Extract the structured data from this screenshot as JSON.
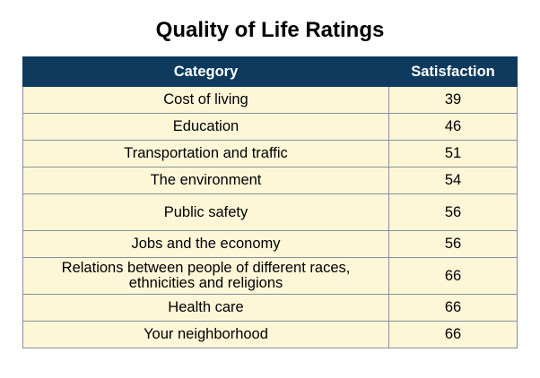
{
  "chart_data": {
    "type": "table",
    "title": "Quality of Life Ratings",
    "columns": [
      "Category",
      "Satisfaction"
    ],
    "rows": [
      {
        "category": "Cost of living",
        "value": "39"
      },
      {
        "category": "Education",
        "value": "46"
      },
      {
        "category": "Transportation and traffic",
        "value": "51"
      },
      {
        "category": "The environment",
        "value": "54"
      },
      {
        "category": "Public safety",
        "value": "56"
      },
      {
        "category": "Jobs and the economy",
        "value": "56"
      },
      {
        "category": "Relations between people of different races,\nethnicities and religions",
        "value": "66"
      },
      {
        "category": "Health care",
        "value": "66"
      },
      {
        "category": "Your neighborhood",
        "value": "66"
      }
    ]
  },
  "colors": {
    "header_bg": "#0e3a5e",
    "row_bg": "#fdf7d8"
  }
}
